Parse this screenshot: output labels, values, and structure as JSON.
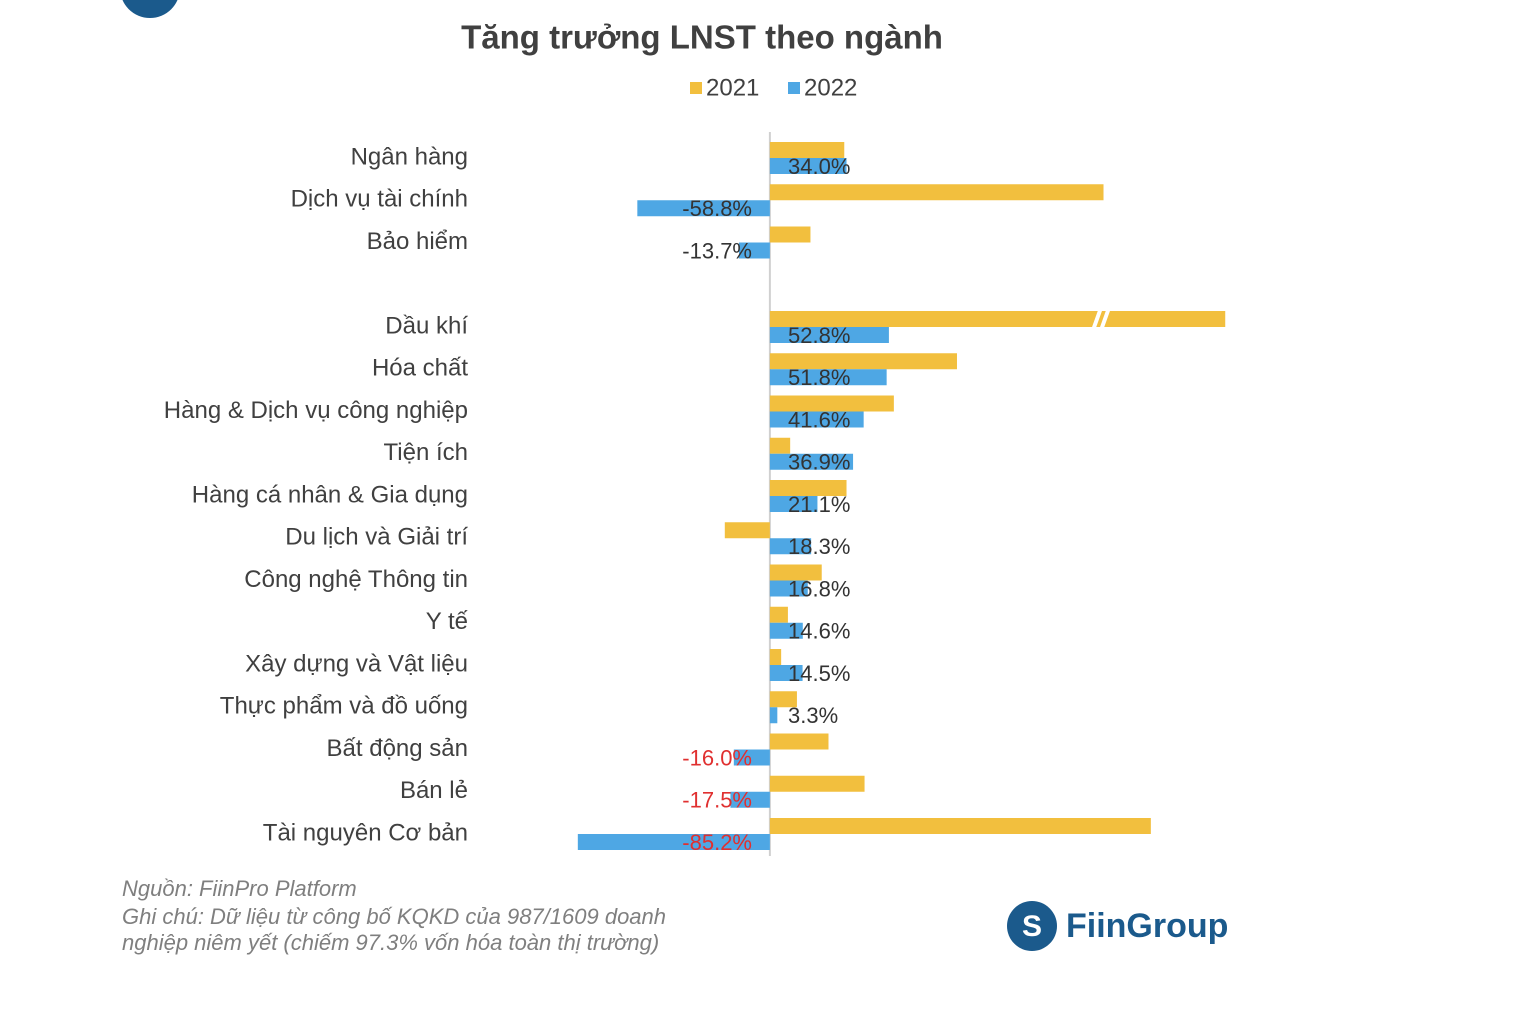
{
  "chart_data": {
    "type": "bar",
    "orientation": "horizontal",
    "title": "Tăng trưởng LNST theo ngành",
    "categories": [
      "Ngân hàng",
      "Dịch vụ tài chính",
      "Bảo hiểm",
      null,
      "Dầu khí",
      "Hóa chất",
      "Hàng & Dịch vụ công nghiệp",
      "Tiện ích",
      "Hàng cá nhân & Gia dụng",
      "Du lịch và Giải trí",
      "Công nghệ Thông tin",
      "Y tế",
      "Xây dựng và Vật liệu",
      "Thực phẩm và đồ uống",
      "Bất động sản",
      "Bán lẻ",
      "Tài nguyên Cơ bản"
    ],
    "series": [
      {
        "name": "2021",
        "color": "#f2bf3e",
        "values": [
          33,
          148,
          18,
          null,
          202,
          83,
          55,
          9,
          34,
          -20,
          23,
          8,
          5,
          12,
          26,
          42,
          169
        ]
      },
      {
        "name": "2022",
        "color": "#4ea7e4",
        "values": [
          34.0,
          -58.8,
          -13.7,
          null,
          52.8,
          51.8,
          41.6,
          36.9,
          21.1,
          18.3,
          16.8,
          14.6,
          14.5,
          3.3,
          -16.0,
          -17.5,
          -85.2
        ],
        "value_labels": [
          "34.0%",
          "-58.8%",
          "-13.7%",
          null,
          "52.8%",
          "51.8%",
          "41.6%",
          "36.9%",
          "21.1%",
          "18.3%",
          "16.8%",
          "14.6%",
          "14.5%",
          "3.3%",
          "-16.0%",
          "-17.5%",
          "-85.2%"
        ],
        "label_colors": [
          "#333333",
          "#333333",
          "#333333",
          null,
          "#333333",
          "#333333",
          "#333333",
          "#333333",
          "#333333",
          "#333333",
          "#333333",
          "#333333",
          "#333333",
          "#333333",
          "#e03030",
          "#e03030",
          "#e03030"
        ]
      }
    ],
    "xlim": [
      -90,
      205
    ],
    "legend": "top",
    "source": "Nguồn: FiinPro Platform",
    "note": [
      "Ghi chú: Dữ liệu từ công bố KQKD của 987/1609 doanh",
      "nghiệp niêm yết (chiếm 97.3% vốn hóa toàn thị trường)"
    ],
    "logo": "FiinGroup"
  }
}
